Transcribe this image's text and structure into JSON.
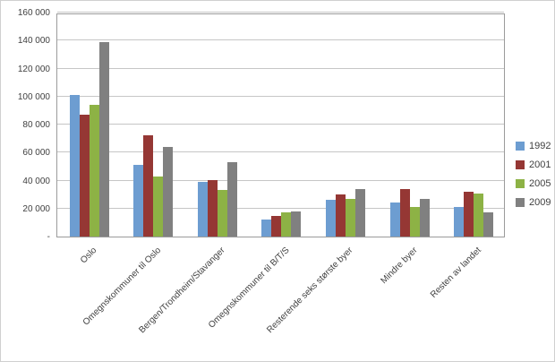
{
  "chart_data": {
    "type": "bar",
    "title": "",
    "xlabel": "",
    "ylabel": "",
    "categories": [
      "Oslo",
      "Omegnskommuner til Oslo",
      "Bergen/Trondheim/Stavanger",
      "Omegnskommuner til B/T/S",
      "Resterende seks største byer",
      "Mindre byer",
      "Resten av landet"
    ],
    "series": [
      {
        "name": "1992",
        "color": "#6d9dd1",
        "values": [
          101000,
          51000,
          39000,
          12000,
          26000,
          24000,
          21000
        ]
      },
      {
        "name": "2001",
        "color": "#953734",
        "values": [
          87000,
          72000,
          40000,
          15000,
          30000,
          34000,
          32000
        ]
      },
      {
        "name": "2005",
        "color": "#8db245",
        "values": [
          94000,
          43000,
          33000,
          17000,
          27000,
          21000,
          31000
        ]
      },
      {
        "name": "2009",
        "color": "#808080",
        "values": [
          139000,
          64000,
          53000,
          18000,
          34000,
          27000,
          17000
        ]
      }
    ],
    "ylim": [
      0,
      160000
    ],
    "ytick_interval": 20000,
    "ytick_labels": [
      "-",
      "20 000",
      "40 000",
      "60 000",
      "80 000",
      "100 000",
      "120 000",
      "140 000",
      "160 000"
    ],
    "grid": true,
    "legend_position": "right"
  }
}
